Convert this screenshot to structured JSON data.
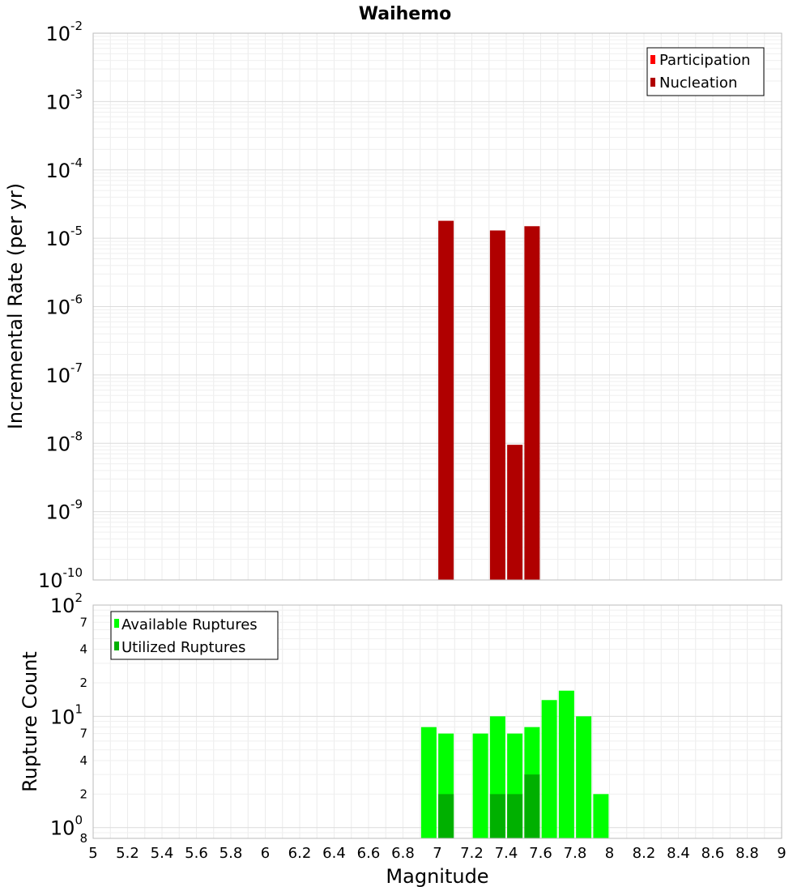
{
  "title": "Waihemo",
  "colors": {
    "participation": "#ff0000",
    "nucleation": "#b00000",
    "available": "#00ff00",
    "utilized": "#00b000"
  },
  "chart_data": [
    {
      "type": "bar",
      "title": "Waihemo",
      "ylabel": "Incremental Rate (per yr)",
      "xlabel": "",
      "xlim": [
        5,
        9
      ],
      "ylim": [
        1e-10,
        0.01
      ],
      "yscale": "log",
      "grid": true,
      "legend_position": "top-right",
      "y_ticks": [
        {
          "base": "10",
          "exp": "-10",
          "value": 1e-10
        },
        {
          "base": "10",
          "exp": "-9",
          "value": 1e-09
        },
        {
          "base": "10",
          "exp": "-8",
          "value": 1e-08
        },
        {
          "base": "10",
          "exp": "-7",
          "value": 1e-07
        },
        {
          "base": "10",
          "exp": "-6",
          "value": 1e-06
        },
        {
          "base": "10",
          "exp": "-5",
          "value": 1e-05
        },
        {
          "base": "10",
          "exp": "-4",
          "value": 0.0001
        },
        {
          "base": "10",
          "exp": "-3",
          "value": 0.001
        },
        {
          "base": "10",
          "exp": "-2",
          "value": 0.01
        }
      ],
      "series": [
        {
          "name": "Participation",
          "color": "#ff0000",
          "x": [],
          "values": []
        },
        {
          "name": "Nucleation",
          "color": "#b00000",
          "x": [
            7.05,
            7.35,
            7.45,
            7.55
          ],
          "values": [
            1.8e-05,
            1.3e-05,
            9.5e-09,
            1.5e-05
          ]
        }
      ]
    },
    {
      "type": "bar",
      "title": "",
      "ylabel": "Rupture Count",
      "xlabel": "Magnitude",
      "xlim": [
        5,
        9
      ],
      "ylim": [
        0.8,
        100
      ],
      "yscale": "log",
      "grid": true,
      "legend_position": "top-left",
      "x_ticks": [
        "5",
        "5.2",
        "5.4",
        "5.6",
        "5.8",
        "6",
        "6.2",
        "6.4",
        "6.6",
        "6.8",
        "7",
        "7.2",
        "7.4",
        "7.6",
        "7.8",
        "8",
        "8.2",
        "8.4",
        "8.6",
        "8.8",
        "9"
      ],
      "y_major_ticks": [
        {
          "base": "10",
          "exp": "0",
          "value": 1
        },
        {
          "base": "10",
          "exp": "1",
          "value": 10
        },
        {
          "base": "10",
          "exp": "2",
          "value": 100
        }
      ],
      "y_minor_labels": [
        {
          "label": "8",
          "value": 0.8
        },
        {
          "label": "2",
          "value": 2
        },
        {
          "label": "4",
          "value": 4
        },
        {
          "label": "7",
          "value": 7
        },
        {
          "label": "2",
          "value": 20
        },
        {
          "label": "4",
          "value": 40
        },
        {
          "label": "7",
          "value": 70
        }
      ],
      "series": [
        {
          "name": "Available Ruptures",
          "color": "#00ff00",
          "x": [
            6.95,
            7.05,
            7.25,
            7.35,
            7.45,
            7.55,
            7.65,
            7.75,
            7.85,
            7.95
          ],
          "values": [
            8,
            7,
            7,
            10,
            7,
            8,
            14,
            17,
            10,
            2
          ]
        },
        {
          "name": "Utilized Ruptures",
          "color": "#00b000",
          "x": [
            7.05,
            7.35,
            7.45,
            7.55
          ],
          "values": [
            2,
            2,
            2,
            3
          ]
        }
      ]
    }
  ]
}
